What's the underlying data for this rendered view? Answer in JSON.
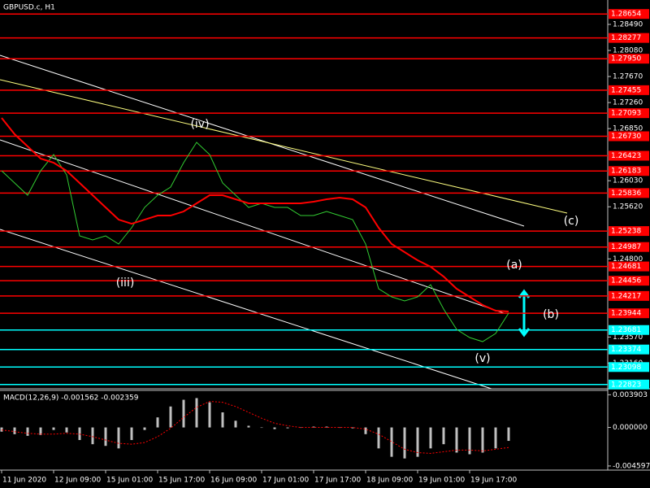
{
  "chart_data": [
    {
      "type": "line",
      "title": "GBPUSD.c, H1",
      "categories": [
        "11 Jun 2020",
        null,
        null,
        null,
        "12 Jun 09:00",
        null,
        null,
        null,
        "15 Jun 01:00",
        null,
        null,
        null,
        "15 Jun 17:00",
        null,
        null,
        null,
        "16 Jun 09:00",
        null,
        null,
        null,
        "17 Jun 01:00",
        null,
        null,
        null,
        "17 Jun 17:00",
        null,
        null,
        null,
        "18 Jun 09:00",
        null,
        null,
        null,
        "19 Jun 01:00",
        null,
        null,
        null,
        "19 Jun 17:00",
        null,
        null,
        null
      ],
      "series": [
        {
          "color": "#32cd32",
          "values": [
            1.26186,
            1.25994,
            1.25802,
            1.26186,
            1.26442,
            1.26122,
            1.25162,
            1.25098,
            1.25162,
            1.25034,
            1.2529,
            1.2561,
            1.25802,
            1.2593,
            1.26314,
            1.26634,
            1.26442,
            1.25994,
            1.25802,
            1.2561,
            1.25674,
            1.2561,
            1.2561,
            1.25482,
            1.25482,
            1.25546,
            1.25482,
            1.25418,
            1.25034,
            1.2433,
            1.24202,
            1.24138,
            1.24202,
            1.24394,
            1.2401,
            1.2369,
            1.23562,
            1.23498,
            1.23626,
            1.23946
          ]
        },
        {
          "color": "#ff0000",
          "values": [
            1.27018,
            1.26762,
            1.2657,
            1.26378,
            1.26314,
            1.26186,
            1.25994,
            1.25802,
            1.2561,
            1.25418,
            1.25354,
            1.25418,
            1.25482,
            1.25482,
            1.25546,
            1.25674,
            1.25802,
            1.25802,
            1.25738,
            1.25674,
            1.25674,
            1.25674,
            1.25674,
            1.25674,
            1.257,
            1.25738,
            1.25764,
            1.25738,
            1.2561,
            1.2529,
            1.25034,
            1.24906,
            1.24778,
            1.24676,
            1.24522,
            1.2433,
            1.24202,
            1.24074,
            1.23984,
            1.23972
          ]
        }
      ],
      "ylim": [
        1.22756,
        1.28874
      ],
      "yticks": [
        {
          "value": 1.2849,
          "label": "1.28490"
        },
        {
          "value": 1.2808,
          "label": "1.28080"
        },
        {
          "value": 1.2767,
          "label": "1.27670"
        },
        {
          "value": 1.2726,
          "label": "1.27260"
        },
        {
          "value": 1.2685,
          "label": "1.26850"
        },
        {
          "value": 1.2603,
          "label": "1.26030"
        },
        {
          "value": 1.2562,
          "label": "1.25620"
        },
        {
          "value": 1.248,
          "label": "1.24800"
        },
        {
          "value": 1.2357,
          "label": "1.23570"
        },
        {
          "value": 1.2316,
          "label": "1.23160"
        }
      ],
      "levels": [
        {
          "value": 1.28654,
          "label": "1.28654",
          "color": "#ff0000",
          "label_color": "#ffffff"
        },
        {
          "value": 1.28277,
          "label": "1.28277",
          "color": "#ff0000",
          "label_color": "#ffffff"
        },
        {
          "value": 1.2795,
          "label": "1.27950",
          "color": "#ff0000",
          "label_color": "#ffffff"
        },
        {
          "value": 1.27455,
          "label": "1.27455",
          "color": "#ff0000",
          "label_color": "#ffffff"
        },
        {
          "value": 1.27093,
          "label": "1.27093",
          "color": "#ff0000",
          "label_color": "#ffffff"
        },
        {
          "value": 1.2673,
          "label": "1.26730",
          "color": "#ff0000",
          "label_color": "#ffffff"
        },
        {
          "value": 1.26423,
          "label": "1.26423",
          "color": "#ff0000",
          "label_color": "#ffffff"
        },
        {
          "value": 1.26183,
          "label": "1.26183",
          "color": "#ff0000",
          "label_color": "#ffffff"
        },
        {
          "value": 1.25836,
          "label": "1.25836",
          "color": "#ff0000",
          "label_color": "#ffffff"
        },
        {
          "value": 1.25238,
          "label": "1.25238",
          "color": "#ff0000",
          "label_color": "#ffffff"
        },
        {
          "value": 1.24987,
          "label": "1.24987",
          "color": "#ff0000",
          "label_color": "#ffffff"
        },
        {
          "value": 1.24681,
          "label": "1.24681",
          "color": "#ff0000",
          "label_color": "#ffffff"
        },
        {
          "value": 1.24456,
          "label": "1.24456",
          "color": "#ff0000",
          "label_color": "#ffffff"
        },
        {
          "value": 1.24217,
          "label": "1.24217",
          "color": "#ff0000",
          "label_color": "#ffffff"
        },
        {
          "value": 1.23944,
          "label": "1.23944",
          "color": "#ff0000",
          "label_color": "#ffffff"
        },
        {
          "value": 1.23681,
          "label": "1.23681",
          "color": "#00ffff",
          "label_color": "#000000"
        },
        {
          "value": 1.23374,
          "label": "1.23374",
          "color": "#00ffff",
          "label_color": "#000000"
        },
        {
          "value": 1.23098,
          "label": "1.23098",
          "color": "#00ffff",
          "label_color": "#000000"
        },
        {
          "value": 1.22823,
          "label": "1.22823",
          "color": "#00ffff",
          "label_color": "#000000"
        }
      ],
      "annotations": [
        {
          "text": "(iv)",
          "color": "#ffffff"
        },
        {
          "text": "(iii)",
          "color": "#ffffff"
        },
        {
          "text": "(v)",
          "color": "#ffffff"
        },
        {
          "text": "(a)",
          "color": "#ffd700"
        },
        {
          "text": "(b)",
          "color": "#ffd700"
        },
        {
          "text": "(c)",
          "color": "#ffd700"
        }
      ]
    },
    {
      "type": "bar",
      "title": "MACD(12,26,9) -0.001562 -0.002359",
      "color": "#c0c0c0",
      "values": [
        -0.0005,
        -0.0008,
        -0.001,
        -0.0009,
        -0.0003,
        -0.0006,
        -0.0015,
        -0.002,
        -0.0022,
        -0.0025,
        -0.0015,
        -0.0003,
        0.0012,
        0.0025,
        0.0033,
        0.0035,
        0.003,
        0.0018,
        0.0008,
        0.0002,
        0,
        -0.0002,
        -0.0001,
        0,
        0.0001,
        0.0001,
        0,
        -0.0001,
        -0.0008,
        -0.0025,
        -0.0035,
        -0.0037,
        -0.0035,
        -0.0025,
        -0.002,
        -0.003,
        -0.0032,
        -0.003,
        -0.0025,
        -0.0016
      ],
      "series": [
        {
          "color": "#ff0000",
          "values": [
            -0.0003,
            -0.0005,
            -0.0007,
            -0.0008,
            -0.0008,
            -0.0007,
            -0.0008,
            -0.0011,
            -0.0015,
            -0.0019,
            -0.002,
            -0.0018,
            -0.0011,
            -0.0001,
            0.0012,
            0.0024,
            0.0031,
            0.003,
            0.0025,
            0.0018,
            0.0011,
            0.0005,
            0.0002,
            0,
            0,
            0,
            0,
            0,
            -0.0002,
            -0.0008,
            -0.0017,
            -0.0026,
            -0.003,
            -0.0031,
            -0.0029,
            -0.0027,
            -0.0027,
            -0.0028,
            -0.0026,
            -0.0024
          ]
        }
      ],
      "ylim": [
        -0.00509,
        0.00442
      ],
      "yticks": [
        {
          "value": 0.003903,
          "label": "0.003903"
        },
        {
          "value": 0,
          "label": "0.000000"
        },
        {
          "value": -0.004597,
          "label": "-0.004597"
        }
      ]
    }
  ]
}
